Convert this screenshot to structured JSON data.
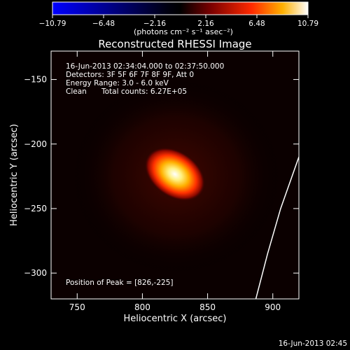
{
  "colorbar": {
    "ticks": [
      "−10.79",
      "−6.48",
      "−2.16",
      "2.16",
      "6.48",
      "10.79"
    ],
    "unit_label": "(photons cm⁻² s⁻¹ asec⁻²)",
    "range": [
      -10.79,
      10.79
    ]
  },
  "chart_data": {
    "type": "heatmap",
    "title": "Reconstructed RHESSI Image",
    "xlabel": "Heliocentric X (arcsec)",
    "ylabel": "Heliocentric Y (arcsec)",
    "xlim": [
      730,
      920
    ],
    "ylim": [
      -320,
      -128
    ],
    "x_ticks": [
      750,
      800,
      850,
      900
    ],
    "y_ticks": [
      -150,
      -200,
      -250,
      -300
    ],
    "x_tick_labels": [
      "750",
      "800",
      "850",
      "900"
    ],
    "y_tick_labels": [
      "−150",
      "−200",
      "−250",
      "−300"
    ],
    "peak": {
      "x": 826,
      "y": -225,
      "value": 10.79
    },
    "limb_curve": [
      [
        920,
        -210
      ],
      [
        906,
        -250
      ],
      [
        896,
        -285
      ],
      [
        887,
        -320
      ]
    ],
    "annotations": {
      "time_range": "16-Jun-2013 02:34:04.000 to 02:37:50.000",
      "detectors": "Detectors: 3F 5F 6F 7F 8F 9F, Att 0",
      "energy_range": "Energy Range: 3.0 - 6.0 keV",
      "method": "Clean",
      "total_counts": "Total counts: 6.27E+05",
      "position_of_peak": "Position of Peak = [826,-225]"
    },
    "timestamp": "16-Jun-2013 02:45"
  },
  "colors": {
    "background": "#000000",
    "colormap": [
      "#0000ff",
      "#000000",
      "#7a0000",
      "#ff2a00",
      "#ffb000",
      "#ffffff"
    ],
    "limb_line": "#ffffff"
  }
}
